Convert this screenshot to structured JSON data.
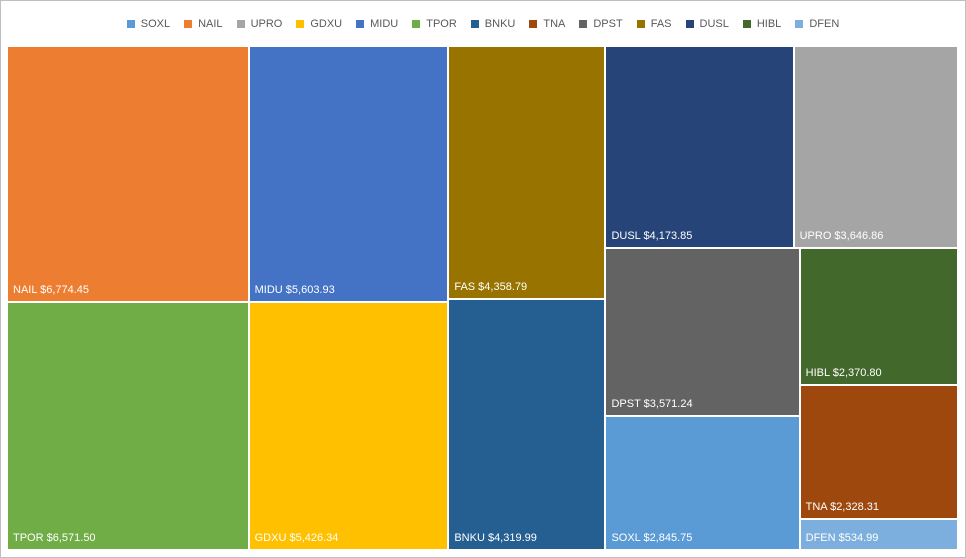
{
  "chart_data": {
    "type": "treemap",
    "legend_position": "top",
    "legend": [
      "SOXL",
      "NAIL",
      "UPRO",
      "GDXU",
      "MIDU",
      "TPOR",
      "BNKU",
      "TNA",
      "DPST",
      "FAS",
      "DUSL",
      "HIBL",
      "DFEN"
    ],
    "items": [
      {
        "name": "NAIL",
        "value": 6774.45,
        "label": "NAIL $6,774.45",
        "color": "#ED7D31"
      },
      {
        "name": "TPOR",
        "value": 6571.5,
        "label": "TPOR $6,571.50",
        "color": "#70AD47"
      },
      {
        "name": "MIDU",
        "value": 5603.93,
        "label": "MIDU $5,603.93",
        "color": "#4472C4"
      },
      {
        "name": "GDXU",
        "value": 5426.34,
        "label": "GDXU $5,426.34",
        "color": "#FFC000"
      },
      {
        "name": "FAS",
        "value": 4358.79,
        "label": "FAS $4,358.79",
        "color": "#997300"
      },
      {
        "name": "BNKU",
        "value": 4319.99,
        "label": "BNKU $4,319.99",
        "color": "#255E91"
      },
      {
        "name": "DUSL",
        "value": 4173.85,
        "label": "DUSL $4,173.85",
        "color": "#264478"
      },
      {
        "name": "UPRO",
        "value": 3646.86,
        "label": "UPRO $3,646.86",
        "color": "#A5A5A5"
      },
      {
        "name": "DPST",
        "value": 3571.24,
        "label": "DPST $3,571.24",
        "color": "#636363"
      },
      {
        "name": "SOXL",
        "value": 2845.75,
        "label": "SOXL $2,845.75",
        "color": "#5B9BD5"
      },
      {
        "name": "HIBL",
        "value": 2370.8,
        "label": "HIBL $2,370.80",
        "color": "#43682B"
      },
      {
        "name": "TNA",
        "value": 2328.31,
        "label": "TNA $2,328.31",
        "color": "#9E480E"
      },
      {
        "name": "DFEN",
        "value": 534.99,
        "label": "DFEN $534.99",
        "color": "#7CAFDD"
      }
    ]
  }
}
